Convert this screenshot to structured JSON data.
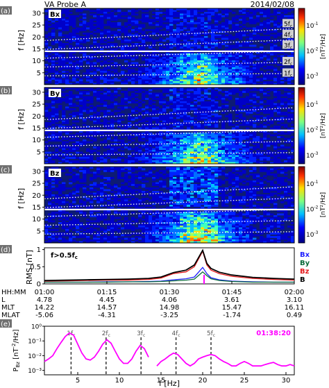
{
  "header": {
    "probe": "VA Probe A",
    "date": "2014/02/08"
  },
  "panels": {
    "a": {
      "tag": "(a)",
      "comp": "Bx"
    },
    "b": {
      "tag": "(b)",
      "comp": "By"
    },
    "c": {
      "tag": "(c)",
      "comp": "Bz"
    },
    "d": {
      "tag": "(d)",
      "filter": "f>0.5f",
      "filter_sub": "c"
    },
    "e": {
      "tag": "(e)",
      "time": "01:38:20"
    }
  },
  "harmonic_labels": [
    "1f",
    "2f",
    "3f",
    "4f",
    "5f"
  ],
  "harmonic_sub": "c",
  "freq_ylabel": "f [Hz]",
  "freq_ticks": [
    "5",
    "10",
    "15",
    "20",
    "25",
    "30"
  ],
  "colorbar": {
    "ticks": [
      "10",
      "10",
      "10"
    ],
    "exps": [
      "-1",
      "-2",
      "-3"
    ],
    "label": "[nT²/Hz]"
  },
  "colors": {
    "background": "#ffffff",
    "Bx": "#1f1fff",
    "By": "#0a6b3a",
    "Bz": "#e41a1c",
    "B": "#000000",
    "accent": "#ff00ff",
    "panel_fill": "#0d1b73"
  },
  "chart_data": [
    {
      "type": "heatmap",
      "panel": "a",
      "component": "Bx",
      "ylabel": "f [Hz]",
      "ylim": [
        0,
        32
      ],
      "harmonics": [
        "1fc",
        "2fc",
        "3fc",
        "4fc",
        "5fc"
      ],
      "fc_start_hz": 3.7,
      "fc_end_hz": 4.7,
      "colorbar_range": [
        0.0005,
        0.3
      ]
    },
    {
      "type": "heatmap",
      "panel": "b",
      "component": "By",
      "ylabel": "f [Hz]",
      "ylim": [
        0,
        32
      ],
      "colorbar_range": [
        0.0005,
        0.3
      ]
    },
    {
      "type": "heatmap",
      "panel": "c",
      "component": "Bz",
      "ylabel": "f [Hz]",
      "ylim": [
        0,
        32
      ],
      "colorbar_range": [
        0.0005,
        0.3
      ]
    },
    {
      "type": "line",
      "panel": "d",
      "ylabel": "RMS [nT]",
      "ylim": [
        0,
        1
      ],
      "yticks": [
        "0",
        "0.5",
        "1"
      ],
      "x": [
        "01:00",
        "01:05",
        "01:10",
        "01:15",
        "01:20",
        "01:25",
        "01:28",
        "01:31",
        "01:34",
        "01:36",
        "01:38",
        "01:39",
        "01:40",
        "01:42",
        "01:45",
        "01:50",
        "01:55",
        "02:00"
      ],
      "series": [
        {
          "name": "Bx",
          "color": "#1f1fff",
          "values": [
            0.05,
            0.05,
            0.05,
            0.06,
            0.06,
            0.07,
            0.08,
            0.12,
            0.15,
            0.2,
            0.48,
            0.3,
            0.18,
            0.12,
            0.08,
            0.06,
            0.05,
            0.05
          ]
        },
        {
          "name": "By",
          "color": "#0a6b3a",
          "values": [
            0.05,
            0.05,
            0.05,
            0.05,
            0.06,
            0.06,
            0.07,
            0.09,
            0.11,
            0.14,
            0.35,
            0.24,
            0.15,
            0.1,
            0.07,
            0.05,
            0.05,
            0.05
          ]
        },
        {
          "name": "Bz",
          "color": "#e41a1c",
          "values": [
            0.08,
            0.09,
            0.1,
            0.11,
            0.11,
            0.13,
            0.17,
            0.3,
            0.35,
            0.5,
            0.95,
            0.55,
            0.4,
            0.3,
            0.22,
            0.16,
            0.13,
            0.11
          ]
        },
        {
          "name": "B",
          "color": "#000000",
          "values": [
            0.1,
            0.11,
            0.12,
            0.13,
            0.14,
            0.16,
            0.2,
            0.33,
            0.4,
            0.55,
            0.98,
            0.6,
            0.45,
            0.34,
            0.26,
            0.19,
            0.16,
            0.14
          ]
        }
      ],
      "marker_time": "01:38:20"
    },
    {
      "type": "table",
      "panel": "d-ephemeris",
      "rows": [
        {
          "label": "HH:MM",
          "values": [
            "01:00",
            "01:15",
            "01:30",
            "01:45",
            "02:00"
          ]
        },
        {
          "label": "L",
          "values": [
            "4.78",
            "4.45",
            "4.06",
            "3.61",
            "3.10"
          ]
        },
        {
          "label": "MLT",
          "values": [
            "14.22",
            "14.57",
            "14.98",
            "15.47",
            "16.11"
          ]
        },
        {
          "label": "MLAT",
          "values": [
            "-5.06",
            "-4.31",
            "-3.25",
            "-1.74",
            "0.49"
          ]
        }
      ]
    },
    {
      "type": "line",
      "panel": "e",
      "xlabel": "f [Hz]",
      "ylabel": "P_Bz [nT²/Hz]",
      "xlim": [
        1,
        31
      ],
      "ylog": true,
      "ylim": [
        0.0005,
        1
      ],
      "xticks": [
        "5",
        "10",
        "15",
        "20",
        "25",
        "30"
      ],
      "yticks": [
        "10⁻³",
        "10⁻²",
        "10⁻¹",
        "10⁰"
      ],
      "time": "01:38:20",
      "harmonic_freqs": [
        4.2,
        8.4,
        12.6,
        16.8,
        21.0
      ],
      "x": [
        1,
        1.5,
        2,
        2.5,
        3,
        3.5,
        4,
        4.5,
        5,
        5.5,
        6,
        6.5,
        7,
        7.5,
        8,
        8.5,
        9,
        9.5,
        10,
        10.5,
        11,
        11.5,
        12,
        12.5,
        13,
        13.5,
        14,
        14.5,
        15,
        15.5,
        16,
        16.5,
        17,
        17.5,
        18,
        18.5,
        19,
        19.5,
        20,
        20.5,
        21,
        21.5,
        22,
        22.5,
        23,
        23.5,
        24,
        24.5,
        25,
        25.5,
        26,
        26.5,
        27,
        27.5,
        28,
        28.5,
        29,
        29.5,
        30,
        30.5,
        31
      ],
      "values": [
        0.004,
        0.006,
        0.01,
        0.03,
        0.08,
        0.2,
        0.35,
        0.25,
        0.06,
        0.015,
        0.006,
        0.005,
        0.008,
        0.02,
        0.06,
        0.12,
        0.07,
        0.02,
        0.006,
        0.003,
        0.003,
        0.006,
        0.02,
        0.05,
        0.03,
        0.008,
        null,
        0.002,
        0.004,
        0.006,
        0.01,
        0.015,
        0.012,
        0.006,
        0.003,
        0.002,
        0.003,
        0.006,
        0.008,
        0.01,
        0.012,
        0.01,
        0.006,
        0.004,
        0.003,
        0.002,
        0.002,
        0.003,
        0.004,
        0.003,
        0.002,
        0.002,
        0.002,
        0.0025,
        0.003,
        0.0035,
        0.0025,
        0.002,
        0.002,
        0.0025,
        0.002
      ]
    }
  ]
}
